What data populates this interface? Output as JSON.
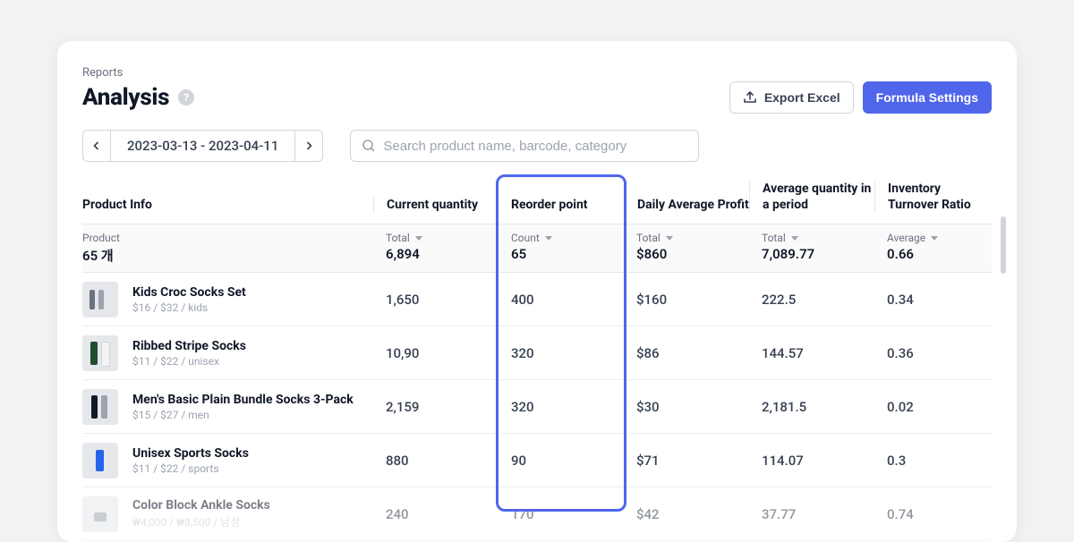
{
  "breadcrumb": "Reports",
  "title": "Analysis",
  "buttons": {
    "export": "Export Excel",
    "formula": "Formula Settings"
  },
  "date_range": "2023-03-13 - 2023-04-11",
  "search": {
    "placeholder": "Search product name, barcode, category"
  },
  "columns": {
    "product": "Product Info",
    "qty": "Current quantity",
    "reorder": "Reorder point",
    "profit": "Daily Average Profit",
    "avgqty": "Average quantity in a period",
    "turnover": "Inventory Turnover Ratio"
  },
  "summary": {
    "product_label": "Product",
    "product_value": "65 개",
    "qty_label": "Total",
    "qty_value": "6,894",
    "reorder_label": "Count",
    "reorder_value": "65",
    "profit_label": "Total",
    "profit_value": "$860",
    "avgqty_label": "Total",
    "avgqty_value": "7,089.77",
    "turnover_label": "Average",
    "turnover_value": "0.66"
  },
  "rows": [
    {
      "name": "Kids Croc Socks Set",
      "sub": "$16 / $32 / kids",
      "qty": "1,650",
      "reorder": "400",
      "profit": "$160",
      "avgqty": "222.5",
      "turnover": "0.34",
      "thumb": "th-socks-multi"
    },
    {
      "name": "Ribbed Stripe Socks",
      "sub": "$11 / $22 / unisex",
      "qty": "10,90",
      "reorder": "320",
      "profit": "$86",
      "avgqty": "144.57",
      "turnover": "0.36",
      "thumb": "th-stripe"
    },
    {
      "name": "Men's Basic Plain Bundle Socks 3-Pack",
      "sub": "$15 / $27 / men",
      "qty": "2,159",
      "reorder": "320",
      "profit": "$30",
      "avgqty": "2,181.5",
      "turnover": "0.02",
      "thumb": "th-basic"
    },
    {
      "name": "Unisex Sports Socks",
      "sub": "$11 / $22 / sports",
      "qty": "880",
      "reorder": "90",
      "profit": "$71",
      "avgqty": "114.07",
      "turnover": "0.3",
      "thumb": "th-sport"
    },
    {
      "name": "Color Block Ankle Socks",
      "sub": "₩4,000 / ₩8,500 / 남성",
      "qty": "240",
      "reorder": "170",
      "profit": "$42",
      "avgqty": "37.77",
      "turnover": "0.74",
      "thumb": "th-ankle"
    }
  ]
}
